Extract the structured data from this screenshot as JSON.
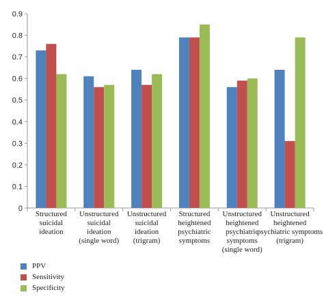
{
  "chart_data": {
    "type": "bar",
    "categories": [
      [
        "Structured",
        "suicidal",
        "ideation"
      ],
      [
        "Unstructured",
        "suicidal",
        "ideation",
        "(single word)"
      ],
      [
        "Unstructured",
        "suicidal",
        "ideation",
        "(trigram)"
      ],
      [
        "Structured",
        "heightened",
        "psychiatric",
        "symptoms"
      ],
      [
        "Unstructured",
        "heightened",
        "psychiatric",
        "symptoms",
        "(single word)"
      ],
      [
        "Unstructured",
        "heightened",
        "psychiatric symptoms",
        "(trigram)"
      ]
    ],
    "series": [
      {
        "name": "PPV",
        "color": "#4f81bd",
        "values": [
          0.73,
          0.61,
          0.64,
          0.79,
          0.56,
          0.64
        ]
      },
      {
        "name": "Sensitivity",
        "color": "#c0504d",
        "values": [
          0.76,
          0.56,
          0.57,
          0.79,
          0.59,
          0.31
        ]
      },
      {
        "name": "Specificity",
        "color": "#9bbb59",
        "values": [
          0.62,
          0.57,
          0.62,
          0.85,
          0.6,
          0.79
        ]
      }
    ],
    "yticks": [
      "0",
      "0.1",
      "0.2",
      "0.3",
      "0.4",
      "0.5",
      "0.6",
      "0.7",
      "0.8",
      "0.9"
    ],
    "ylim": [
      0,
      0.9
    ],
    "grid": false,
    "legend_position": "bottom-left"
  }
}
